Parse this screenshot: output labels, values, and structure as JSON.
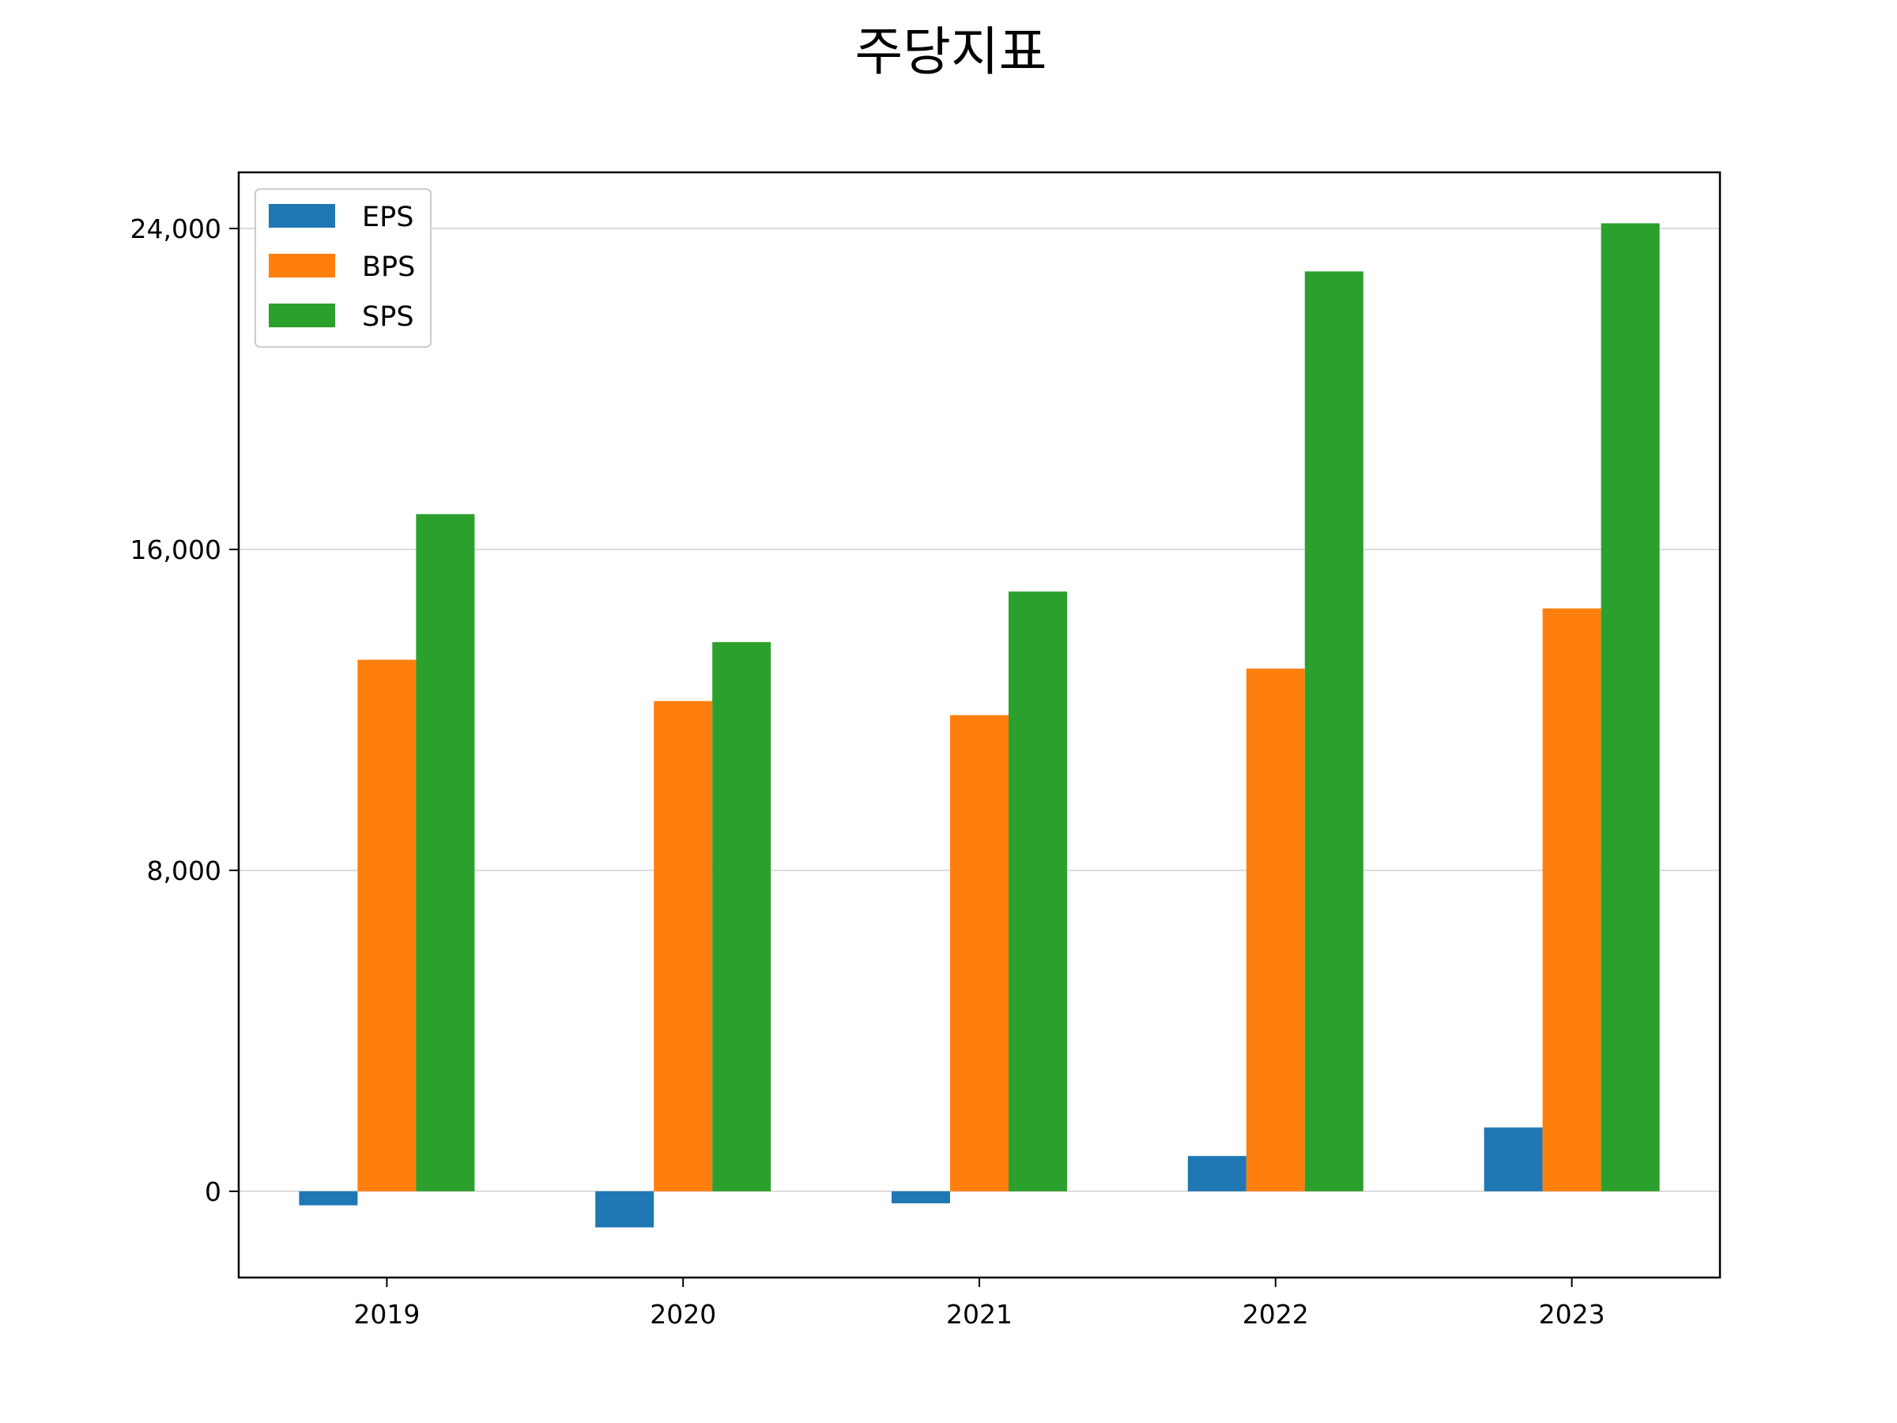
{
  "chart_data": {
    "type": "bar",
    "title": "주당지표",
    "xlabel": "",
    "ylabel": "",
    "categories": [
      "2019",
      "2020",
      "2021",
      "2022",
      "2023"
    ],
    "series": [
      {
        "name": "EPS",
        "color": "#1f77b4",
        "values": [
          -350,
          -900,
          -300,
          880,
          1590
        ]
      },
      {
        "name": "BPS",
        "color": "#ff7f0e",
        "values": [
          13250,
          12220,
          11870,
          13030,
          14530
        ]
      },
      {
        "name": "SPS",
        "color": "#2ca02c",
        "values": [
          16880,
          13690,
          14950,
          22930,
          24130
        ]
      }
    ],
    "ylim": [
      -2150,
      25400
    ],
    "yticks": [
      0,
      8000,
      16000,
      24000
    ],
    "ytick_labels": [
      "0",
      "8,000",
      "16,000",
      "24,000"
    ],
    "grid": "y",
    "legend_position": "top-left"
  }
}
